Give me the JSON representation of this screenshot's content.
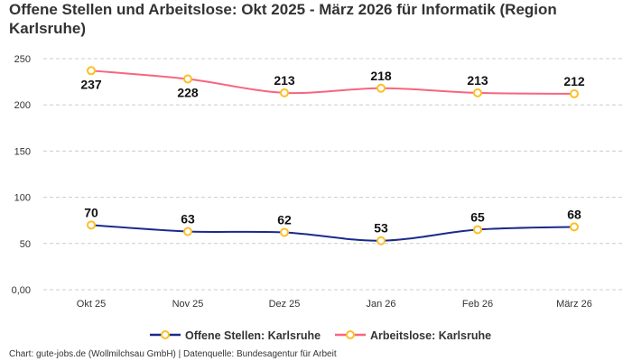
{
  "title": "Offene Stellen und Arbeitslose: Okt 2025 - März 2026 für Informatik (Region Karlsruhe)",
  "footer": "Chart: gute-jobs.de (Wollmilchsau GmbH) | Datenquelle: Bundesagentur für Arbeit",
  "chart_data": {
    "type": "line",
    "title": "Offene Stellen und Arbeitslose: Okt 2025 - März 2026 für Informatik (Region Karlsruhe)",
    "categories": [
      "Okt 25",
      "Nov 25",
      "Dez 25",
      "Jan 26",
      "Feb 26",
      "März 26"
    ],
    "ylim": [
      0,
      250
    ],
    "yticks": [
      0,
      50,
      100,
      150,
      200,
      250
    ],
    "ytick_labels": [
      "0,00",
      "50",
      "100",
      "150",
      "200",
      "250"
    ],
    "grid": true,
    "legend_position": "bottom",
    "series": [
      {
        "name": "Offene Stellen: Karlsruhe",
        "color": "#1a2a8c",
        "values": [
          70,
          63,
          62,
          53,
          65,
          68
        ],
        "label_pos": [
          "above",
          "above",
          "above",
          "above",
          "above",
          "above"
        ]
      },
      {
        "name": "Arbeitslose: Karlsruhe",
        "color": "#f7657f",
        "values": [
          237,
          228,
          213,
          218,
          213,
          212
        ],
        "label_pos": [
          "below",
          "below",
          "above",
          "above",
          "above",
          "above"
        ]
      }
    ],
    "marker_color": "#fcbf26"
  }
}
